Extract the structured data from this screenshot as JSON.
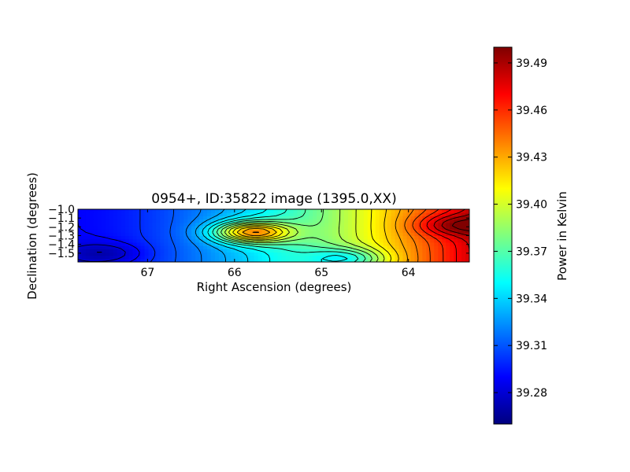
{
  "chart_data": {
    "type": "heatmap",
    "title": "0954+, ID:35822 image (1395.0,XX)",
    "xlabel": "Right Ascension (degrees)",
    "ylabel": "Declination (degrees)",
    "xlim": [
      67.8,
      63.3
    ],
    "ylim": [
      -1.6,
      -1.0
    ],
    "x_ticks": [
      {
        "value": 67,
        "label": "67"
      },
      {
        "value": 66,
        "label": "66"
      },
      {
        "value": 65,
        "label": "65"
      },
      {
        "value": 64,
        "label": "64"
      }
    ],
    "y_ticks": [
      {
        "value": -1.0,
        "label": "−1.0"
      },
      {
        "value": -1.1,
        "label": "−1.1"
      },
      {
        "value": -1.2,
        "label": "−1.2"
      },
      {
        "value": -1.3,
        "label": "−1.3"
      },
      {
        "value": -1.4,
        "label": "−1.4"
      },
      {
        "value": -1.5,
        "label": "−1.5"
      }
    ],
    "colorbar": {
      "label": "Power in Kelvin",
      "range": [
        39.26,
        39.5
      ],
      "colormap": "jet",
      "ticks": [
        {
          "value": 39.28,
          "label": "39.28"
        },
        {
          "value": 39.31,
          "label": "39.31"
        },
        {
          "value": 39.34,
          "label": "39.34"
        },
        {
          "value": 39.37,
          "label": "39.37"
        },
        {
          "value": 39.4,
          "label": "39.40"
        },
        {
          "value": 39.43,
          "label": "39.43"
        },
        {
          "value": 39.46,
          "label": "39.46"
        },
        {
          "value": 39.49,
          "label": "39.49"
        }
      ]
    },
    "contours": true,
    "features": [
      {
        "kind": "gradient",
        "description_free": true,
        "x": [
          67.8,
          63.3
        ],
        "trend": [
          39.29,
          39.48
        ]
      },
      {
        "kind": "peak",
        "x": 65.8,
        "y": -1.26,
        "value": 39.44
      },
      {
        "kind": "peak",
        "x": 63.5,
        "y": -1.18,
        "value": 39.5
      },
      {
        "kind": "trough",
        "x": 67.5,
        "y": -1.5,
        "value": 39.27
      },
      {
        "kind": "trough",
        "x": 64.7,
        "y": -1.56,
        "value": 39.35
      }
    ]
  },
  "colors": {
    "jet_stops": [
      "#00007f",
      "#0000ff",
      "#007fff",
      "#00ffff",
      "#7fff7f",
      "#ffff00",
      "#ff7f00",
      "#ff0000",
      "#7f0000"
    ],
    "contour": "#000000"
  }
}
